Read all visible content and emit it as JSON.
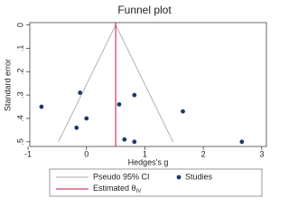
{
  "chart_data": {
    "type": "funnel",
    "title": "Funnel plot",
    "x_label": "Hedges's g",
    "y_label": "Standard error",
    "xlim": [
      -0.97,
      3.08
    ],
    "ylim": [
      -0.01,
      0.52
    ],
    "y_inverted": true,
    "xticks": [
      -1,
      0,
      1,
      2,
      3
    ],
    "yticks": [
      0,
      {
        "value": 0.1,
        "label": ".1"
      },
      {
        "value": 0.2,
        "label": ".2"
      },
      {
        "value": 0.3,
        "label": ".3"
      },
      {
        "value": 0.4,
        "label": ".4"
      },
      {
        "value": 0.5,
        "label": ".5"
      }
    ],
    "studies": {
      "name": "Studies",
      "color": "#1f3a68",
      "x": [
        -0.77,
        -0.11,
        0,
        -0.17,
        0.56,
        0.82,
        1.65,
        0.65,
        0.82,
        2.66
      ],
      "values": [
        0.35,
        0.29,
        0.4,
        0.44,
        0.34,
        0.3,
        0.37,
        0.49,
        0.5,
        0.5
      ]
    },
    "pseudo_ci": {
      "name": "Pseudo 95% CI",
      "color": "#a9a9a9",
      "se": [
        0,
        0.5
      ],
      "lower": [
        0.5,
        -0.48
      ],
      "upper": [
        0.5,
        1.48
      ]
    },
    "estimate": {
      "name": "Estimated θ",
      "subscript": "IV",
      "color": "#c0143c",
      "value": 0.5
    }
  }
}
